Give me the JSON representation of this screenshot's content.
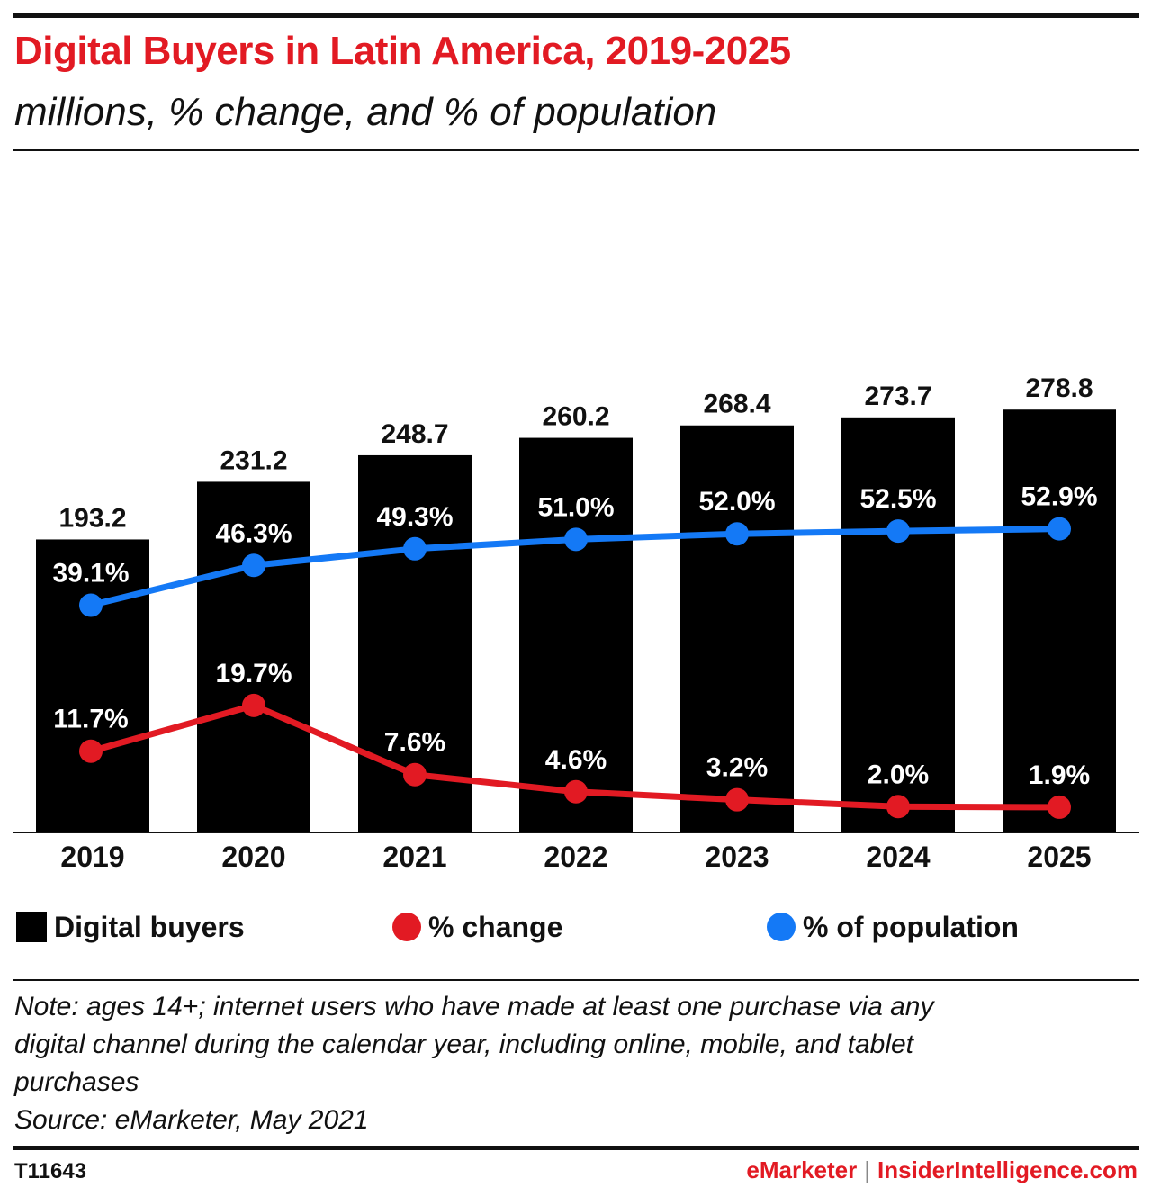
{
  "header": {
    "title": "Digital Buyers in Latin America, 2019-2025",
    "subtitle": "millions, % change, and % of population"
  },
  "chart_data": {
    "type": "bar",
    "categories": [
      "2019",
      "2020",
      "2021",
      "2022",
      "2023",
      "2024",
      "2025"
    ],
    "series": [
      {
        "name": "Digital buyers",
        "kind": "bar",
        "color": "#000000",
        "values": [
          193.2,
          231.2,
          248.7,
          260.2,
          268.4,
          273.7,
          278.8
        ],
        "labels": [
          "193.2",
          "231.2",
          "248.7",
          "260.2",
          "268.4",
          "273.7",
          "278.8"
        ]
      },
      {
        "name": "% change",
        "kind": "line",
        "color": "#e21a23",
        "values": [
          11.7,
          19.7,
          7.6,
          4.6,
          3.2,
          2.0,
          1.9
        ],
        "labels": [
          "11.7%",
          "19.7%",
          "7.6%",
          "4.6%",
          "3.2%",
          "2.0%",
          "1.9%"
        ]
      },
      {
        "name": "% of population",
        "kind": "line",
        "color": "#1479f6",
        "values": [
          39.1,
          46.3,
          49.3,
          51.0,
          52.0,
          52.5,
          52.9
        ],
        "labels": [
          "39.1%",
          "46.3%",
          "49.3%",
          "51.0%",
          "52.0%",
          "52.5%",
          "52.9%"
        ]
      }
    ],
    "grid": false,
    "legend": "bottom"
  },
  "legend": {
    "items": [
      "Digital buyers",
      "% change",
      "% of population"
    ]
  },
  "note": {
    "lines": [
      "Note: ages 14+; internet users who have made at least one purchase via any",
      "digital channel during the calendar year, including online, mobile, and tablet",
      "purchases"
    ],
    "source": "Source: eMarketer, May 2021"
  },
  "footer": {
    "chart_id": "T11643",
    "brand1": "eMarketer",
    "separator": "|",
    "brand2": "InsiderIntelligence.com"
  }
}
